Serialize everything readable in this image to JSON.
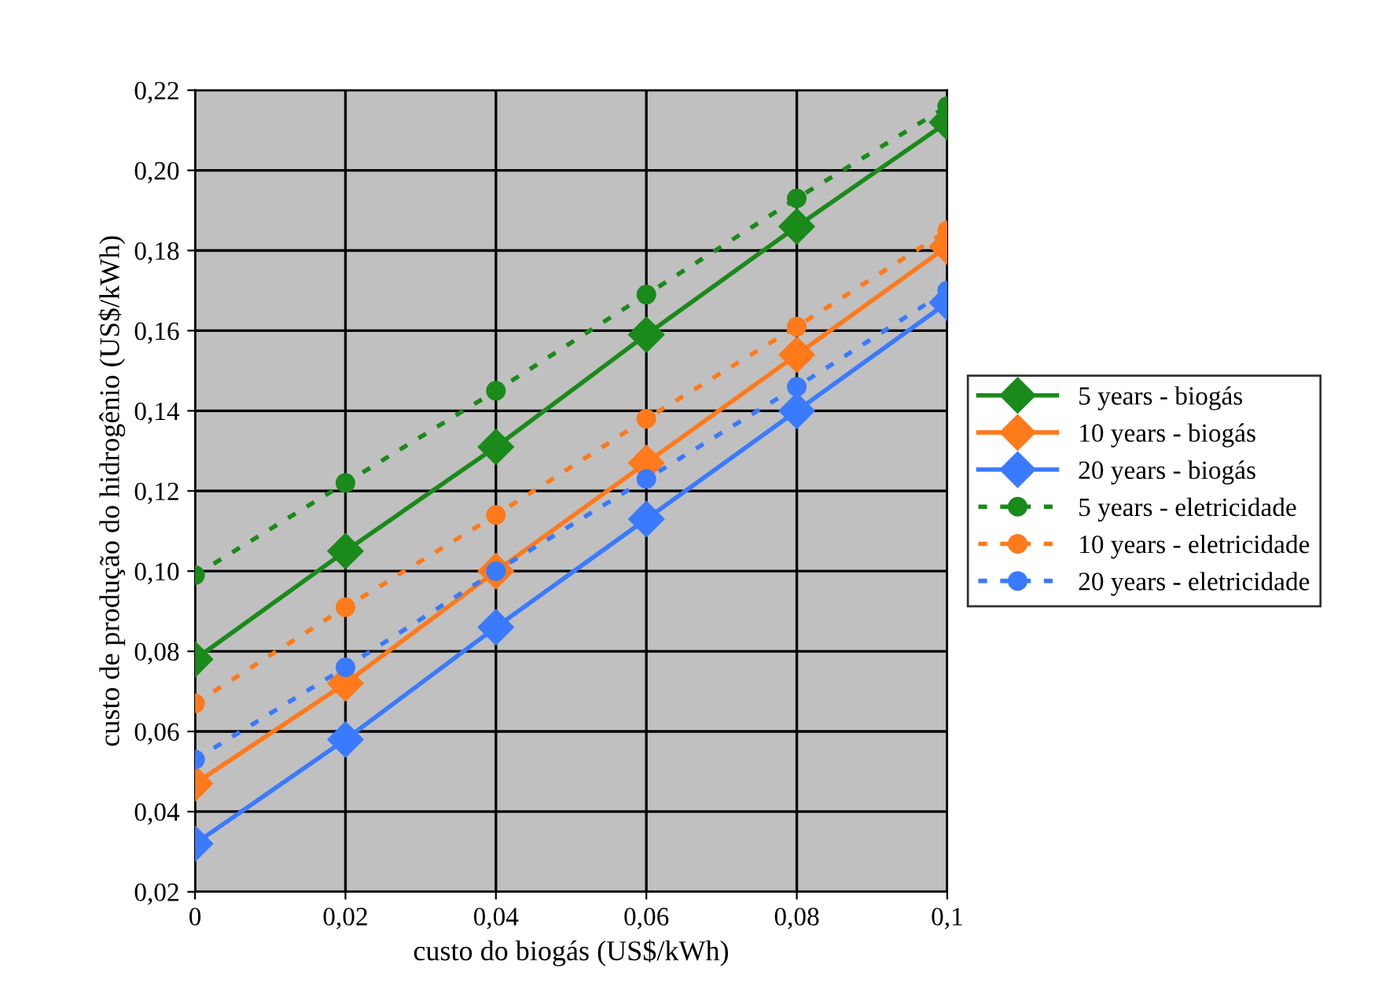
{
  "chart_data": {
    "type": "line",
    "xlabel": "custo do biogás (US$/kWh)",
    "ylabel": "custo de produção do hidrogênio (US$/kWh)",
    "x": [
      0,
      0.02,
      0.04,
      0.06,
      0.08,
      0.1
    ],
    "xlim": [
      0,
      0.1
    ],
    "ylim": [
      0.02,
      0.22
    ],
    "xticks": [
      0,
      {
        "value": 0.02,
        "label": "0,02"
      },
      {
        "value": 0.04,
        "label": "0,04"
      },
      {
        "value": 0.06,
        "label": "0,06"
      },
      {
        "value": 0.08,
        "label": "0,08"
      },
      {
        "value": 0.1,
        "label": "0,1"
      }
    ],
    "yticks": [
      {
        "value": 0.02,
        "label": "0,02"
      },
      {
        "value": 0.04,
        "label": "0,04"
      },
      {
        "value": 0.06,
        "label": "0,06"
      },
      {
        "value": 0.08,
        "label": "0,08"
      },
      {
        "value": 0.1,
        "label": "0,10"
      },
      {
        "value": 0.12,
        "label": "0,12"
      },
      {
        "value": 0.14,
        "label": "0,14"
      },
      {
        "value": 0.16,
        "label": "0,16"
      },
      {
        "value": 0.18,
        "label": "0,18"
      },
      {
        "value": 0.2,
        "label": "0,20"
      },
      {
        "value": 0.22,
        "label": "0,22"
      }
    ],
    "grid": true,
    "legend": "right",
    "series": [
      {
        "name": "5 years - biogás",
        "color": "#1a8a1a",
        "marker": "diamond",
        "line_style": "solid",
        "values": [
          0.078,
          0.105,
          0.131,
          0.159,
          0.186,
          0.212
        ]
      },
      {
        "name": "10 years - biogás",
        "color": "#ff7a1a",
        "marker": "diamond",
        "line_style": "solid",
        "values": [
          0.047,
          0.072,
          0.1,
          0.127,
          0.154,
          0.181
        ]
      },
      {
        "name": "20 years - biogás",
        "color": "#3a7aff",
        "marker": "diamond",
        "line_style": "solid",
        "values": [
          0.032,
          0.058,
          0.086,
          0.113,
          0.14,
          0.167
        ]
      },
      {
        "name": "5 years - eletricidade",
        "color": "#1a8a1a",
        "marker": "circle",
        "line_style": "dotted",
        "values": [
          0.099,
          0.122,
          0.145,
          0.169,
          0.193,
          0.216
        ]
      },
      {
        "name": "10 years - eletricidade",
        "color": "#ff7a1a",
        "marker": "circle",
        "line_style": "dotted",
        "values": [
          0.067,
          0.091,
          0.114,
          0.138,
          0.161,
          0.185
        ]
      },
      {
        "name": "20 years - eletricidade",
        "color": "#3a7aff",
        "marker": "circle",
        "line_style": "dotted",
        "values": [
          0.053,
          0.076,
          0.1,
          0.123,
          0.146,
          0.17
        ]
      }
    ]
  }
}
